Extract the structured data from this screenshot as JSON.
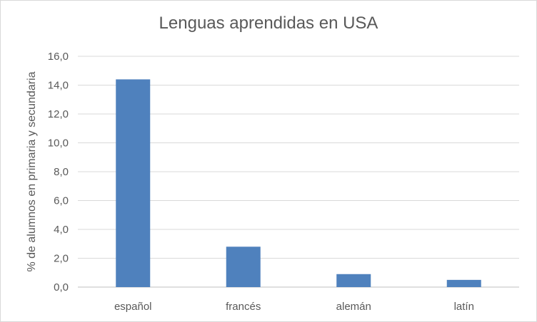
{
  "chart_data": {
    "type": "bar",
    "title": "Lenguas aprendidas en USA",
    "xlabel": "",
    "ylabel": "% de alumnos en primaria y secundaria",
    "categories": [
      "español",
      "francés",
      "alemán",
      "latín"
    ],
    "values": [
      14.4,
      2.8,
      0.9,
      0.5
    ],
    "ylim": [
      0,
      16
    ],
    "yticks": [
      "0,0",
      "2,0",
      "4,0",
      "6,0",
      "8,0",
      "10,0",
      "12,0",
      "14,0",
      "16,0"
    ],
    "bar_color": "#4f81bd",
    "grid": true,
    "legend": "none"
  }
}
